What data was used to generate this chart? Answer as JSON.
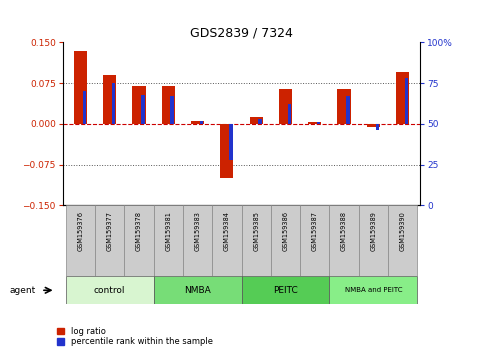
{
  "title": "GDS2839 / 7324",
  "samples": [
    "GSM159376",
    "GSM159377",
    "GSM159378",
    "GSM159381",
    "GSM159383",
    "GSM159384",
    "GSM159385",
    "GSM159386",
    "GSM159387",
    "GSM159388",
    "GSM159389",
    "GSM159390"
  ],
  "log_ratio": [
    0.135,
    0.09,
    0.07,
    0.07,
    0.005,
    -0.1,
    0.012,
    0.065,
    0.003,
    0.065,
    -0.005,
    0.095
  ],
  "percentile_rank": [
    70,
    75,
    68,
    67,
    52,
    28,
    53,
    62,
    51,
    67,
    46,
    78
  ],
  "ylim_left": [
    -0.15,
    0.15
  ],
  "ylim_right": [
    0,
    100
  ],
  "yticks_left": [
    -0.15,
    -0.075,
    0,
    0.075,
    0.15
  ],
  "yticks_right": [
    0,
    25,
    50,
    75,
    100
  ],
  "bar_color_red": "#cc2200",
  "bar_color_blue": "#2233cc",
  "hline_color": "#cc0000",
  "dotted_color": "#555555",
  "groups": [
    {
      "label": "control",
      "start": 0,
      "end": 3,
      "color": "#d8f5d0"
    },
    {
      "label": "NMBA",
      "start": 3,
      "end": 6,
      "color": "#77dd77"
    },
    {
      "label": "PEITC",
      "start": 6,
      "end": 9,
      "color": "#55cc55"
    },
    {
      "label": "NMBA and PEITC",
      "start": 9,
      "end": 12,
      "color": "#88ee88"
    }
  ]
}
